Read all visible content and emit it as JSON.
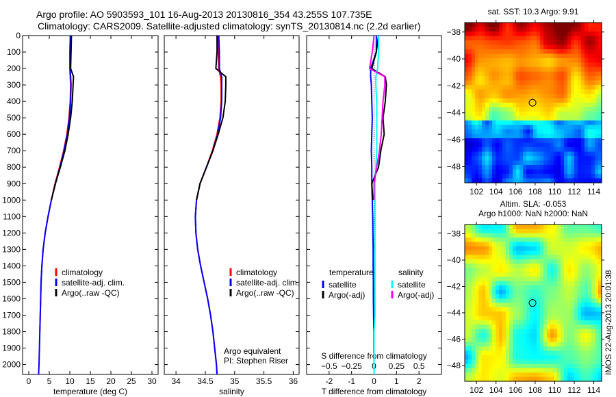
{
  "title_line1": "Argo profile: AO 5903593_101 16-Aug-2013 20130816_354 43.255S 107.735E",
  "title_line2": "Climatology: CARS2009. Satellite-adjusted climatology: synTS_20130814.nc (2.2d earlier)",
  "footer_stamp": "IMOS 22-Aug-2013 20:01:38",
  "colors": {
    "climatology": "#ff0000",
    "satellite": "#0000ff",
    "argo": "#000000",
    "sal_satellite": "#00ffff",
    "sal_argo": "#ff00ff"
  },
  "chart_data": [
    {
      "type": "line",
      "xlabel": "temperature (deg C)",
      "xlim": [
        -1.5,
        31.5
      ],
      "ylim": [
        0,
        2060
      ],
      "y_reversed": true,
      "xticks": [
        0,
        5,
        10,
        15,
        20,
        25,
        30
      ],
      "yticks": [
        0,
        100,
        200,
        300,
        400,
        500,
        600,
        700,
        800,
        900,
        1000,
        1100,
        1200,
        1300,
        1400,
        1500,
        1600,
        1700,
        1800,
        1900,
        2000
      ],
      "depth": [
        0,
        100,
        200,
        250,
        300,
        400,
        500,
        600,
        700,
        800,
        900,
        1000,
        1100,
        1200,
        1300,
        1400,
        1500,
        1600,
        1700,
        1800,
        1900,
        2000,
        2060
      ],
      "series": [
        {
          "name": "climatology",
          "color": "#ff0000",
          "values": [
            10.1,
            10.0,
            10.0,
            10.1,
            10.2,
            10.1,
            9.8,
            9.3,
            8.5,
            7.5,
            6.4,
            5.5,
            4.7,
            4.0,
            3.5,
            3.2,
            3.0,
            2.9,
            2.8,
            2.7,
            2.6,
            2.5,
            2.4
          ],
          "depth_max": 1850
        },
        {
          "name": "satellite-adj. clim.",
          "color": "#0000ff",
          "values": [
            10.2,
            10.1,
            10.1,
            10.2,
            10.3,
            10.2,
            9.9,
            9.4,
            8.6,
            7.6,
            6.5,
            5.5,
            4.7,
            4.0,
            3.5,
            3.2,
            3.0,
            2.9,
            2.8,
            2.7,
            2.6,
            2.5,
            2.4
          ]
        },
        {
          "name": "Argo(..raw -QC)",
          "color": "#000000",
          "values": [
            10.4,
            10.3,
            10.2,
            10.9,
            10.8,
            10.6,
            10.2,
            9.6,
            8.8,
            7.7,
            6.5,
            5.5,
            4.7,
            4.0,
            3.5,
            3.2,
            3.0,
            2.9,
            2.8,
            2.7,
            2.6,
            2.5,
            2.4
          ],
          "depth_max": 1050
        }
      ],
      "legend": [
        "climatology",
        "satellite-adj. clim.",
        "Argo(..raw -QC)"
      ]
    },
    {
      "type": "line",
      "xlabel": "salinity",
      "xlim": [
        33.8,
        36.1
      ],
      "ylim": [
        0,
        2060
      ],
      "y_reversed": true,
      "xticks": [
        34,
        34.5,
        35,
        35.5,
        36
      ],
      "depth": [
        0,
        100,
        200,
        250,
        300,
        400,
        500,
        600,
        700,
        800,
        900,
        1000,
        1100,
        1200,
        1300,
        1400,
        1500,
        1600,
        1700,
        1800,
        1900,
        2000,
        2060
      ],
      "series": [
        {
          "name": "climatology",
          "color": "#ff0000",
          "values": [
            34.71,
            34.72,
            34.73,
            34.76,
            34.77,
            34.77,
            34.75,
            34.7,
            34.62,
            34.52,
            34.41,
            34.35,
            34.33,
            34.34,
            34.37,
            34.42,
            34.48,
            34.54,
            34.59,
            34.63,
            34.66,
            34.69,
            34.7
          ]
        },
        {
          "name": "satellite-adj. clim.",
          "color": "#0000ff",
          "values": [
            34.73,
            34.74,
            34.74,
            34.78,
            34.78,
            34.78,
            34.76,
            34.71,
            34.63,
            34.52,
            34.41,
            34.35,
            34.33,
            34.34,
            34.37,
            34.42,
            34.48,
            34.54,
            34.59,
            34.63,
            34.66,
            34.69,
            34.7
          ]
        },
        {
          "name": "Argo(..raw -QC)",
          "color": "#000000",
          "values": [
            34.7,
            34.7,
            34.68,
            34.85,
            34.85,
            34.84,
            34.8,
            34.72,
            34.63,
            34.52,
            34.41,
            34.35,
            34.33,
            34.34,
            34.37,
            34.42,
            34.48,
            34.54,
            34.59,
            34.63,
            34.66,
            34.69,
            34.7
          ],
          "depth_max": 1050
        }
      ],
      "legend": [
        "climatology",
        "satellite-adj. clim.",
        "Argo(..raw -QC)"
      ],
      "annotation": [
        "Argo equivalent",
        "PI: Stephen Riser"
      ]
    },
    {
      "type": "line",
      "xlabel": "T difference from climatology",
      "xlabel2": "S difference from climatology",
      "xlim": [
        -3,
        3
      ],
      "x2lim": [
        -0.75,
        0.75
      ],
      "ylim": [
        0,
        2060
      ],
      "y_reversed": true,
      "xticks": [
        -2,
        -1,
        0,
        1,
        2
      ],
      "x2ticks": [
        -0.5,
        -0.25,
        0,
        0.25,
        0.5
      ],
      "depth": [
        0,
        100,
        200,
        250,
        300,
        400,
        500,
        600,
        700,
        800,
        900,
        1000,
        1100,
        1200,
        1300,
        1400,
        1500,
        1600,
        1700,
        1800,
        1900,
        2000,
        2060
      ],
      "series": [
        {
          "name": "temperature satellite",
          "color": "#0000ff",
          "axis": "T",
          "values": [
            0.1,
            0.1,
            -0.15,
            -0.15,
            -0.12,
            -0.1,
            -0.08,
            -0.1,
            -0.12,
            -0.1,
            -0.1,
            -0.08,
            -0.06,
            -0.05,
            -0.04,
            -0.04,
            -0.03,
            -0.03,
            -0.02,
            -0.01,
            -0.01,
            0,
            0
          ]
        },
        {
          "name": "temperature Argo(-adj)",
          "color": "#000000",
          "axis": "T",
          "values": [
            0.2,
            0.1,
            -0.1,
            0.5,
            0.55,
            0.5,
            0.4,
            0.45,
            0.3,
            0.2,
            -0.1,
            -0.05,
            null,
            null,
            null,
            null,
            null,
            null,
            null,
            null,
            null,
            null,
            null
          ]
        },
        {
          "name": "salinity satellite",
          "color": "#00ffff",
          "axis": "S",
          "values": [
            0.05,
            0.05,
            0.04,
            0.02,
            0.02,
            0.03,
            0.03,
            0.03,
            0.03,
            0.02,
            0.01,
            0.01,
            0.01,
            0.01,
            0.01,
            0.01,
            0.01,
            0.01,
            0.01,
            0.0,
            0.0,
            0.0,
            0.0
          ]
        },
        {
          "name": "salinity Argo(-adj)",
          "color": "#ff00ff",
          "axis": "S",
          "values": [
            0.0,
            -0.02,
            -0.05,
            0.12,
            0.12,
            0.1,
            0.09,
            0.08,
            0.06,
            0.03,
            0.0,
            0.0,
            null,
            null,
            null,
            null,
            null,
            null,
            null,
            null,
            null,
            null,
            null
          ]
        }
      ],
      "legend_headers": [
        "temperature",
        "salinity"
      ],
      "legend": [
        "satellite",
        "Argo(-adj)",
        "satellite",
        "Argo(-adj)"
      ]
    },
    {
      "type": "heatmap",
      "title": "sat. SST: 10.3 Argo: 9.91",
      "xlim": [
        100.8,
        114.8
      ],
      "ylim": [
        -49.2,
        -37.3
      ],
      "xticks": [
        102,
        104,
        106,
        108,
        110,
        112,
        114
      ],
      "yticks": [
        -38,
        -40,
        -42,
        -44,
        -46,
        -48
      ],
      "marker": [
        107.735,
        -43.255
      ]
    },
    {
      "type": "heatmap",
      "title": [
        "Altim. SLA: -0.053",
        "Argo h1000: NaN h2000: NaN"
      ],
      "xlim": [
        100.8,
        114.8
      ],
      "ylim": [
        -49.2,
        -37.3
      ],
      "xticks": [
        102,
        104,
        106,
        108,
        110,
        112,
        114
      ],
      "yticks": [
        -38,
        -40,
        -42,
        -44,
        -46,
        -48
      ],
      "marker": [
        107.735,
        -43.255
      ]
    }
  ]
}
